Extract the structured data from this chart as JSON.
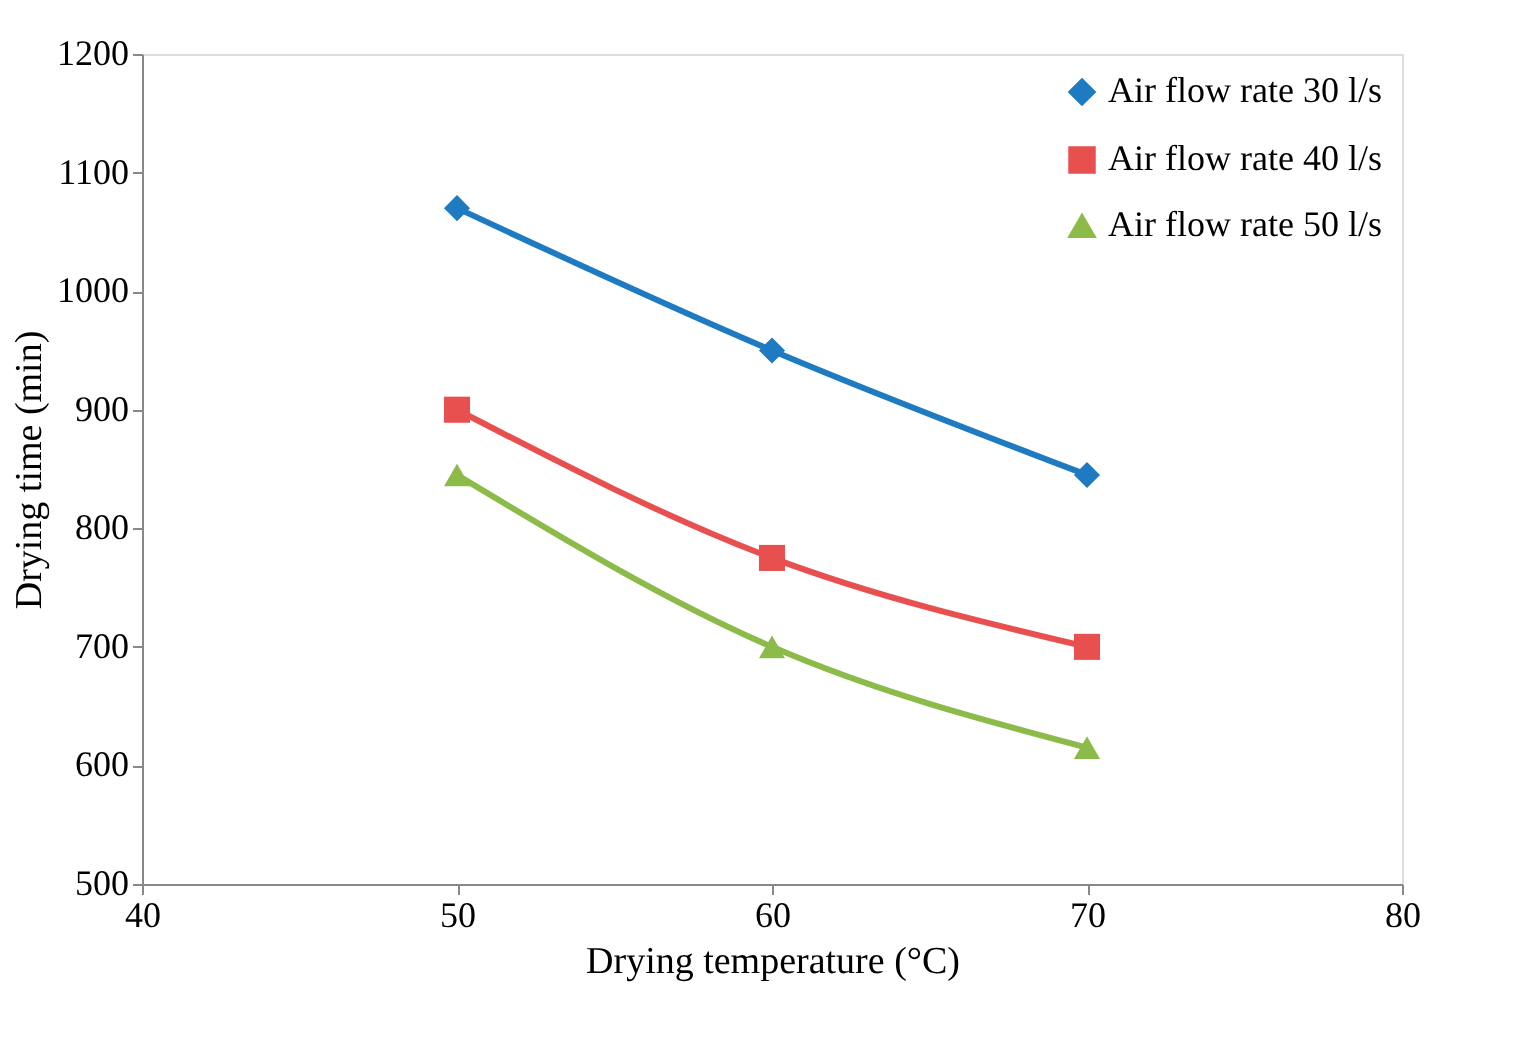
{
  "chart_data": {
    "type": "line",
    "xlabel": "Drying temperature (°C)",
    "ylabel": "Drying time (min)",
    "x": [
      50,
      60,
      70
    ],
    "series": [
      {
        "name": "Air flow rate 30 l/s",
        "color": "#1f7bc1",
        "marker": "diamond",
        "values": [
          1070,
          950,
          845
        ]
      },
      {
        "name": "Air flow rate 40 l/s",
        "color": "#e8504f",
        "marker": "square",
        "values": [
          900,
          775,
          700
        ]
      },
      {
        "name": "Air flow rate 50 l/s",
        "color": "#8cbb4a",
        "marker": "triangle",
        "values": [
          845,
          700,
          615
        ]
      }
    ],
    "xlim": [
      40,
      80
    ],
    "xticks": [
      40,
      50,
      60,
      70,
      80
    ],
    "ylim": [
      500,
      1200
    ],
    "yticks": [
      500,
      600,
      700,
      800,
      900,
      1000,
      1100,
      1200
    ],
    "grid": false,
    "legend": "top right",
    "line_style": "solid"
  }
}
